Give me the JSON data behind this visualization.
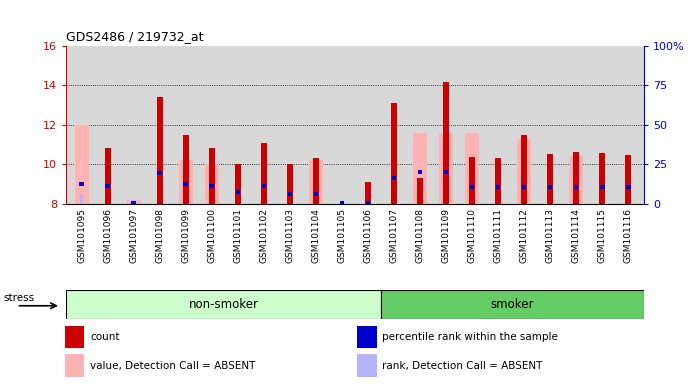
{
  "title": "GDS2486 / 219732_at",
  "samples": [
    "GSM101095",
    "GSM101096",
    "GSM101097",
    "GSM101098",
    "GSM101099",
    "GSM101100",
    "GSM101101",
    "GSM101102",
    "GSM101103",
    "GSM101104",
    "GSM101105",
    "GSM101106",
    "GSM101107",
    "GSM101108",
    "GSM101109",
    "GSM101110",
    "GSM101111",
    "GSM101112",
    "GSM101113",
    "GSM101114",
    "GSM101115",
    "GSM101116"
  ],
  "non_smoker_count": 12,
  "smoker_count": 10,
  "ylim_left": [
    8,
    16
  ],
  "ylim_right": [
    0,
    100
  ],
  "yticks_left": [
    8,
    10,
    12,
    14,
    16
  ],
  "yticks_right": [
    0,
    25,
    50,
    75,
    100
  ],
  "red_bars": [
    8.0,
    10.8,
    8.0,
    13.4,
    11.5,
    10.8,
    10.0,
    11.1,
    10.0,
    10.3,
    8.0,
    9.1,
    13.1,
    9.3,
    14.2,
    10.35,
    10.3,
    11.5,
    10.5,
    10.6,
    10.55,
    10.45
  ],
  "pink_bars": [
    12.0,
    8.0,
    8.2,
    8.0,
    10.2,
    10.0,
    8.0,
    8.0,
    8.0,
    10.2,
    8.0,
    8.0,
    8.0,
    11.6,
    11.6,
    11.6,
    8.0,
    11.3,
    8.0,
    10.4,
    8.0,
    8.0
  ],
  "blue_vals": [
    9.0,
    8.9,
    8.0,
    9.55,
    9.0,
    8.9,
    8.6,
    8.9,
    8.5,
    8.5,
    8.0,
    8.0,
    9.3,
    9.6,
    9.6,
    8.85,
    8.85,
    8.85,
    8.85,
    8.85,
    8.85,
    8.85
  ],
  "light_blue_bars": [
    8.5,
    8.0,
    8.2,
    8.0,
    8.0,
    8.0,
    8.0,
    8.0,
    8.0,
    8.0,
    8.0,
    8.0,
    8.0,
    8.0,
    8.0,
    8.0,
    8.0,
    8.0,
    8.0,
    8.0,
    8.0,
    8.0
  ],
  "colors": {
    "red": "#cc0000",
    "pink": "#ffb3b3",
    "blue": "#0000cc",
    "light_blue": "#b3b3ff",
    "nonsmoker_bg": "#ccffcc",
    "smoker_bg": "#66cc66",
    "plot_bg": "#d8d8d8",
    "left_axis_color": "#cc0000",
    "right_axis_color": "#0000cc"
  },
  "legend_labels": [
    "count",
    "percentile rank within the sample",
    "value, Detection Call = ABSENT",
    "rank, Detection Call = ABSENT"
  ],
  "legend_colors": [
    "#cc0000",
    "#0000cc",
    "#ffb3b3",
    "#b3b3ff"
  ]
}
